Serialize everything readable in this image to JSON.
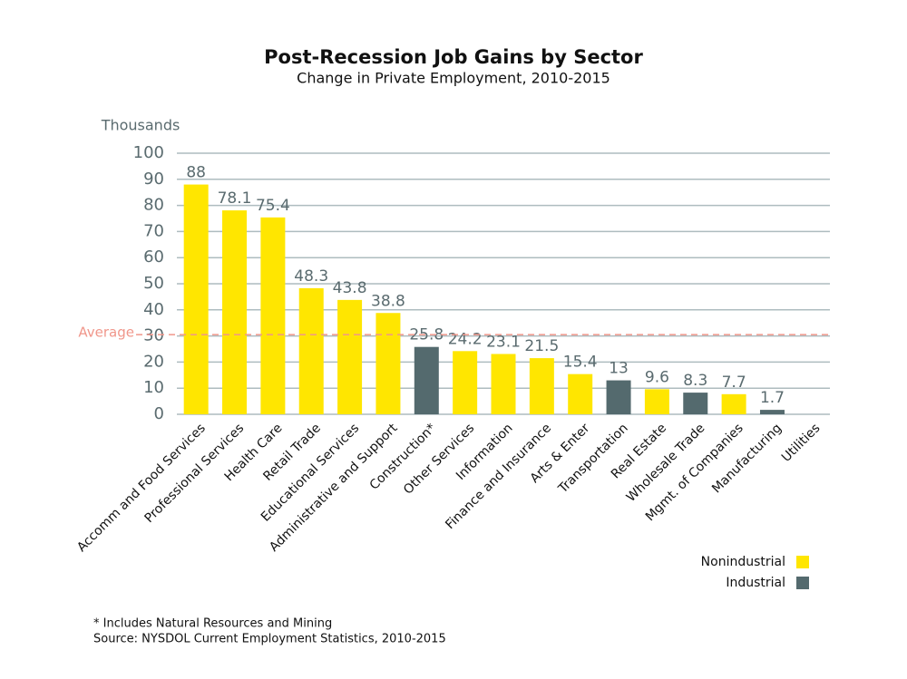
{
  "chart_data": {
    "type": "bar",
    "title": "Post-Recession Job Gains by Sector",
    "subtitle": "Change in Private Employment, 2010-2015",
    "y_label": "Thousands",
    "categories": [
      "Accomm and Food Services",
      "Professional Services",
      "Health Care",
      "Retail Trade",
      "Educational Services",
      "Administrative and Support",
      "Construction*",
      "Other Services",
      "Information",
      "Finance and Insurance",
      "Arts & Enter",
      "Transportation",
      "Real Estate",
      "Wholesale Trade",
      "Mgmt. of Companies",
      "Manufacturing",
      "Utilities"
    ],
    "series": [
      {
        "name": "Nonindustrial",
        "color": "#ffe600",
        "values": [
          88,
          78.1,
          75.4,
          48.3,
          43.8,
          38.8,
          null,
          24.2,
          23.1,
          21.5,
          15.4,
          null,
          9.6,
          null,
          7.7,
          null,
          null
        ]
      },
      {
        "name": "Industrial",
        "color": "#546a6e",
        "values": [
          null,
          null,
          null,
          null,
          null,
          null,
          25.8,
          null,
          null,
          null,
          null,
          13,
          null,
          8.3,
          null,
          1.7,
          null
        ]
      }
    ],
    "ylim": [
      0,
      100
    ],
    "yticks": [
      0,
      10,
      20,
      30,
      40,
      50,
      60,
      70,
      80,
      90,
      100
    ],
    "grid": true,
    "average": {
      "label": "Average",
      "value": 30.5,
      "color": "#f0968a"
    },
    "legend": "bottom-right",
    "notes": [
      "* Includes Natural Resources and Mining",
      "Source: NYSDOL Current Employment Statistics, 2010-2015"
    ]
  }
}
